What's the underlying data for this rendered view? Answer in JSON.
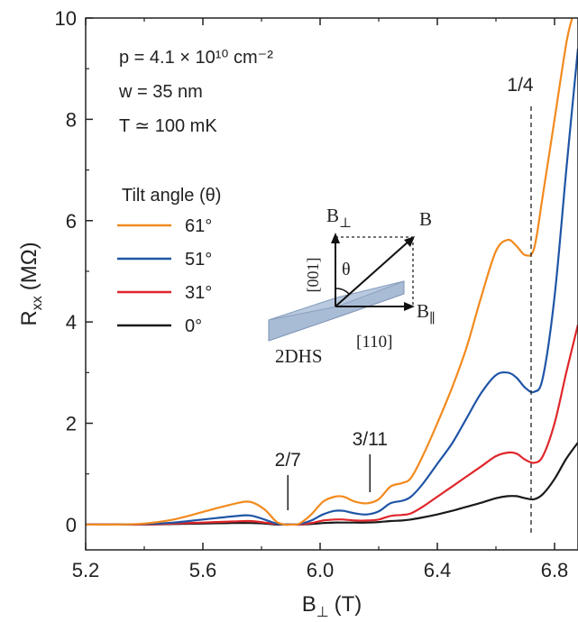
{
  "chart_data": {
    "type": "line",
    "xlabel_main": "B",
    "xlabel_sub": "⊥",
    "xlabel_unit": "(T)",
    "ylabel_main": "R",
    "ylabel_sub": "xx",
    "ylabel_unit": "(MΩ)",
    "xlim": [
      5.2,
      6.88
    ],
    "ylim": [
      -0.5,
      10
    ],
    "xticks": [
      5.2,
      5.6,
      6.0,
      6.4,
      6.8
    ],
    "xtick_labels": [
      "5.2",
      "5.6",
      "6.0",
      "6.4",
      "6.8"
    ],
    "yticks": [
      0,
      2,
      4,
      6,
      8,
      10
    ],
    "ytick_labels": [
      "0",
      "2",
      "4",
      "6",
      "8",
      "10"
    ],
    "params": {
      "density": "p = 4.1 × 10¹⁰ cm⁻²",
      "width": "w = 35 nm",
      "temperature": "T ≃ 100 mK"
    },
    "legend_title": "Tilt angle (θ)",
    "legend_placement": "upper-left",
    "series": [
      {
        "name": "61°",
        "color": "#f28a1e",
        "x": [
          5.2,
          5.3,
          5.4,
          5.5,
          5.6,
          5.7,
          5.76,
          5.81,
          5.85,
          5.88,
          5.9,
          5.93,
          5.97,
          6.01,
          6.05,
          6.08,
          6.12,
          6.16,
          6.2,
          6.24,
          6.28,
          6.31,
          6.35,
          6.4,
          6.45,
          6.5,
          6.55,
          6.6,
          6.64,
          6.67,
          6.7,
          6.73,
          6.76,
          6.8,
          6.84,
          6.86
        ],
        "y": [
          0.0,
          0.0,
          0.02,
          0.1,
          0.25,
          0.4,
          0.45,
          0.3,
          0.06,
          0.0,
          0.0,
          0.02,
          0.2,
          0.45,
          0.55,
          0.55,
          0.45,
          0.42,
          0.5,
          0.75,
          0.82,
          0.92,
          1.35,
          2.0,
          2.7,
          3.5,
          4.5,
          5.4,
          5.62,
          5.5,
          5.32,
          5.45,
          6.5,
          8.0,
          9.5,
          10.0
        ]
      },
      {
        "name": "51°",
        "color": "#1f55a6",
        "x": [
          5.2,
          5.3,
          5.4,
          5.5,
          5.6,
          5.7,
          5.76,
          5.81,
          5.85,
          5.88,
          5.9,
          5.93,
          5.97,
          6.01,
          6.05,
          6.08,
          6.12,
          6.16,
          6.2,
          6.24,
          6.28,
          6.31,
          6.35,
          6.4,
          6.45,
          6.5,
          6.55,
          6.6,
          6.64,
          6.67,
          6.7,
          6.73,
          6.76,
          6.8,
          6.84,
          6.88
        ],
        "y": [
          0.0,
          0.0,
          0.01,
          0.04,
          0.1,
          0.16,
          0.18,
          0.1,
          0.02,
          0.0,
          0.0,
          0.01,
          0.08,
          0.2,
          0.27,
          0.27,
          0.22,
          0.2,
          0.26,
          0.42,
          0.47,
          0.55,
          0.8,
          1.2,
          1.6,
          2.1,
          2.6,
          2.95,
          3.0,
          2.9,
          2.7,
          2.62,
          2.9,
          4.5,
          7.0,
          9.4
        ]
      },
      {
        "name": "31°",
        "color": "#e0262b",
        "x": [
          5.2,
          5.3,
          5.4,
          5.5,
          5.6,
          5.7,
          5.76,
          5.81,
          5.85,
          5.88,
          5.9,
          5.93,
          5.97,
          6.01,
          6.05,
          6.08,
          6.12,
          6.16,
          6.2,
          6.24,
          6.28,
          6.31,
          6.35,
          6.4,
          6.45,
          6.5,
          6.55,
          6.6,
          6.64,
          6.67,
          6.7,
          6.73,
          6.76,
          6.8,
          6.84,
          6.88
        ],
        "y": [
          0.0,
          0.0,
          0.0,
          0.02,
          0.04,
          0.06,
          0.07,
          0.04,
          0.01,
          0.0,
          0.0,
          0.0,
          0.03,
          0.08,
          0.1,
          0.1,
          0.08,
          0.08,
          0.1,
          0.17,
          0.19,
          0.22,
          0.35,
          0.55,
          0.75,
          0.95,
          1.15,
          1.35,
          1.42,
          1.4,
          1.28,
          1.22,
          1.35,
          2.0,
          3.0,
          3.95
        ]
      },
      {
        "name": "0°",
        "color": "#1a1a1a",
        "x": [
          5.2,
          5.3,
          5.4,
          5.5,
          5.6,
          5.7,
          5.76,
          5.81,
          5.85,
          5.88,
          5.9,
          5.93,
          5.97,
          6.01,
          6.05,
          6.08,
          6.12,
          6.16,
          6.2,
          6.24,
          6.28,
          6.31,
          6.35,
          6.4,
          6.45,
          6.5,
          6.55,
          6.6,
          6.64,
          6.67,
          6.7,
          6.73,
          6.76,
          6.8,
          6.84,
          6.88
        ],
        "y": [
          0.0,
          0.0,
          0.0,
          0.01,
          0.02,
          0.03,
          0.03,
          0.02,
          0.0,
          0.0,
          0.0,
          0.0,
          0.01,
          0.03,
          0.04,
          0.04,
          0.04,
          0.04,
          0.05,
          0.07,
          0.08,
          0.1,
          0.14,
          0.2,
          0.27,
          0.35,
          0.43,
          0.52,
          0.56,
          0.56,
          0.52,
          0.5,
          0.6,
          0.9,
          1.3,
          1.62
        ]
      }
    ],
    "annotations": [
      {
        "label": "2/7",
        "x": 5.89,
        "kind": "tick"
      },
      {
        "label": "3/11",
        "x": 6.17,
        "kind": "tick"
      },
      {
        "label": "1/4",
        "x": 6.72,
        "kind": "dashed-line"
      }
    ],
    "inset": {
      "b_perp_main": "B",
      "b_perp_sub": "⊥",
      "b_label": "B",
      "b_par_main": "B",
      "b_par_sub": "∥",
      "theta": "θ",
      "axis_001": "[001]",
      "axis_110": "[110]",
      "sample": "2DHS"
    }
  }
}
